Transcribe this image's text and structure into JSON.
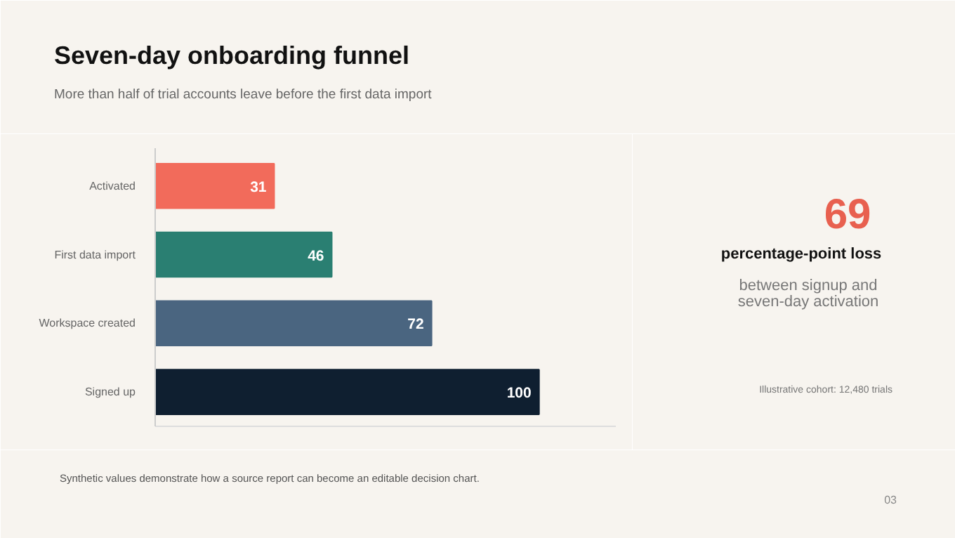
{
  "chart_data": {
    "type": "bar",
    "orientation": "horizontal",
    "title": "Seven-day onboarding funnel",
    "subtitle": "More than half of trial accounts leave before the first data import",
    "categories": [
      "Activated",
      "First data import",
      "Workspace created",
      "Signed up"
    ],
    "values": [
      31,
      46,
      72,
      100
    ],
    "colors": [
      "#f26b5b",
      "#2a7f72",
      "#4a6580",
      "#0f1f30"
    ],
    "xlim": [
      0,
      120
    ],
    "tick_labels": "y",
    "data_labels": true,
    "grid": false,
    "annotations": [
      "69",
      "percentage-point loss",
      "between signup and seven-day activation",
      "Illustrative cohort: 12,480 trials",
      "Synthetic values demonstrate how a source report can become an editable decision chart.",
      "03"
    ]
  }
}
